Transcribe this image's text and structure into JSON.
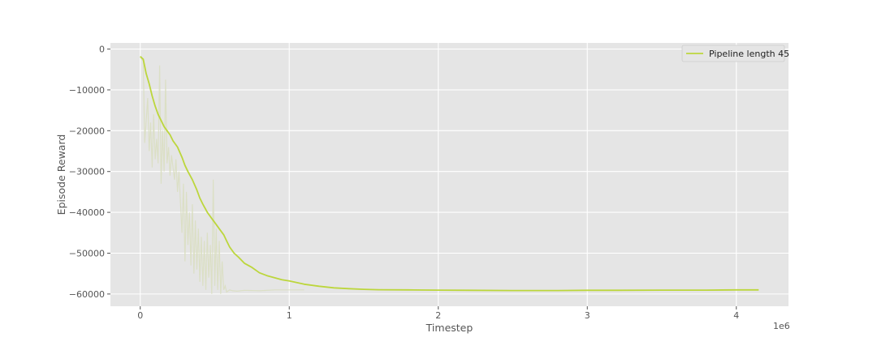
{
  "chart_data": {
    "type": "line",
    "title": "",
    "xlabel": "Timestep",
    "ylabel": "Episode Reward",
    "x_offset_label": "1e6",
    "xlim": [
      -0.2,
      4.35
    ],
    "ylim": [
      -63000,
      1500
    ],
    "x_ticks": [
      0,
      1,
      2,
      3,
      4
    ],
    "x_tick_labels": [
      "0",
      "1",
      "2",
      "3",
      "4"
    ],
    "y_ticks": [
      0,
      -10000,
      -20000,
      -30000,
      -40000,
      -50000,
      -60000
    ],
    "y_tick_labels": [
      "0",
      "−10000",
      "−20000",
      "−30000",
      "−40000",
      "−50000",
      "−60000"
    ],
    "grid": true,
    "legend_position": "top-right",
    "colors": {
      "background": "#e5e5e5",
      "grid": "#ffffff",
      "line": "#bcd63c",
      "raw": "#d9dec0"
    },
    "series": [
      {
        "name": "Pipeline length 45",
        "style": "smoothed",
        "x": [
          0.0,
          0.02,
          0.04,
          0.06,
          0.08,
          0.1,
          0.12,
          0.14,
          0.16,
          0.18,
          0.2,
          0.22,
          0.25,
          0.28,
          0.3,
          0.32,
          0.35,
          0.38,
          0.4,
          0.42,
          0.45,
          0.48,
          0.5,
          0.53,
          0.56,
          0.58,
          0.6,
          0.63,
          0.66,
          0.7,
          0.75,
          0.8,
          0.85,
          0.9,
          0.95,
          1.0,
          1.05,
          1.1,
          1.2,
          1.3,
          1.4,
          1.5,
          1.6,
          1.8,
          2.0,
          2.2,
          2.5,
          2.8,
          3.0,
          3.2,
          3.5,
          3.8,
          4.0,
          4.15
        ],
        "values": [
          -1800,
          -2500,
          -6000,
          -8500,
          -11500,
          -14000,
          -16000,
          -17500,
          -19000,
          -20000,
          -21000,
          -22500,
          -24000,
          -26500,
          -28500,
          -30000,
          -32000,
          -34500,
          -36500,
          -38000,
          -40000,
          -41500,
          -42500,
          -44000,
          -45500,
          -47000,
          -48500,
          -50000,
          -51000,
          -52500,
          -53500,
          -54800,
          -55500,
          -56000,
          -56500,
          -56800,
          -57200,
          -57600,
          -58100,
          -58500,
          -58700,
          -58850,
          -58950,
          -59000,
          -59050,
          -59100,
          -59150,
          -59150,
          -59100,
          -59100,
          -59050,
          -59050,
          -59000,
          -59000
        ]
      },
      {
        "name": "",
        "style": "raw",
        "x": [
          0.0,
          0.02,
          0.03,
          0.05,
          0.06,
          0.07,
          0.08,
          0.09,
          0.1,
          0.11,
          0.12,
          0.13,
          0.14,
          0.15,
          0.16,
          0.17,
          0.18,
          0.19,
          0.2,
          0.21,
          0.22,
          0.23,
          0.24,
          0.25,
          0.26,
          0.27,
          0.28,
          0.29,
          0.3,
          0.31,
          0.32,
          0.33,
          0.34,
          0.35,
          0.36,
          0.37,
          0.38,
          0.39,
          0.4,
          0.41,
          0.42,
          0.43,
          0.44,
          0.45,
          0.46,
          0.47,
          0.48,
          0.49,
          0.5,
          0.51,
          0.52,
          0.53,
          0.54,
          0.55,
          0.56,
          0.57,
          0.58,
          0.6,
          0.62,
          0.65,
          0.7,
          0.8,
          0.9,
          1.0,
          1.1
        ],
        "values": [
          -2000,
          -3000,
          -23000,
          -12000,
          -25000,
          -18000,
          -29000,
          -16000,
          -27000,
          -22000,
          -28000,
          -4000,
          -33000,
          -20000,
          -30000,
          -7500,
          -28000,
          -24000,
          -31000,
          -26000,
          -29000,
          -32000,
          -27000,
          -35000,
          -30000,
          -38000,
          -45000,
          -33000,
          -52000,
          -35000,
          -48000,
          -40000,
          -53000,
          -38000,
          -55000,
          -42000,
          -54000,
          -44000,
          -57000,
          -46000,
          -58000,
          -47000,
          -59000,
          -45000,
          -56000,
          -48000,
          -60000,
          -32000,
          -58000,
          -44000,
          -59000,
          -47000,
          -60000,
          -52000,
          -59000,
          -58000,
          -59500,
          -59000,
          -59200,
          -59300,
          -59100,
          -59200,
          -59000,
          -59000,
          -59000
        ]
      }
    ]
  }
}
